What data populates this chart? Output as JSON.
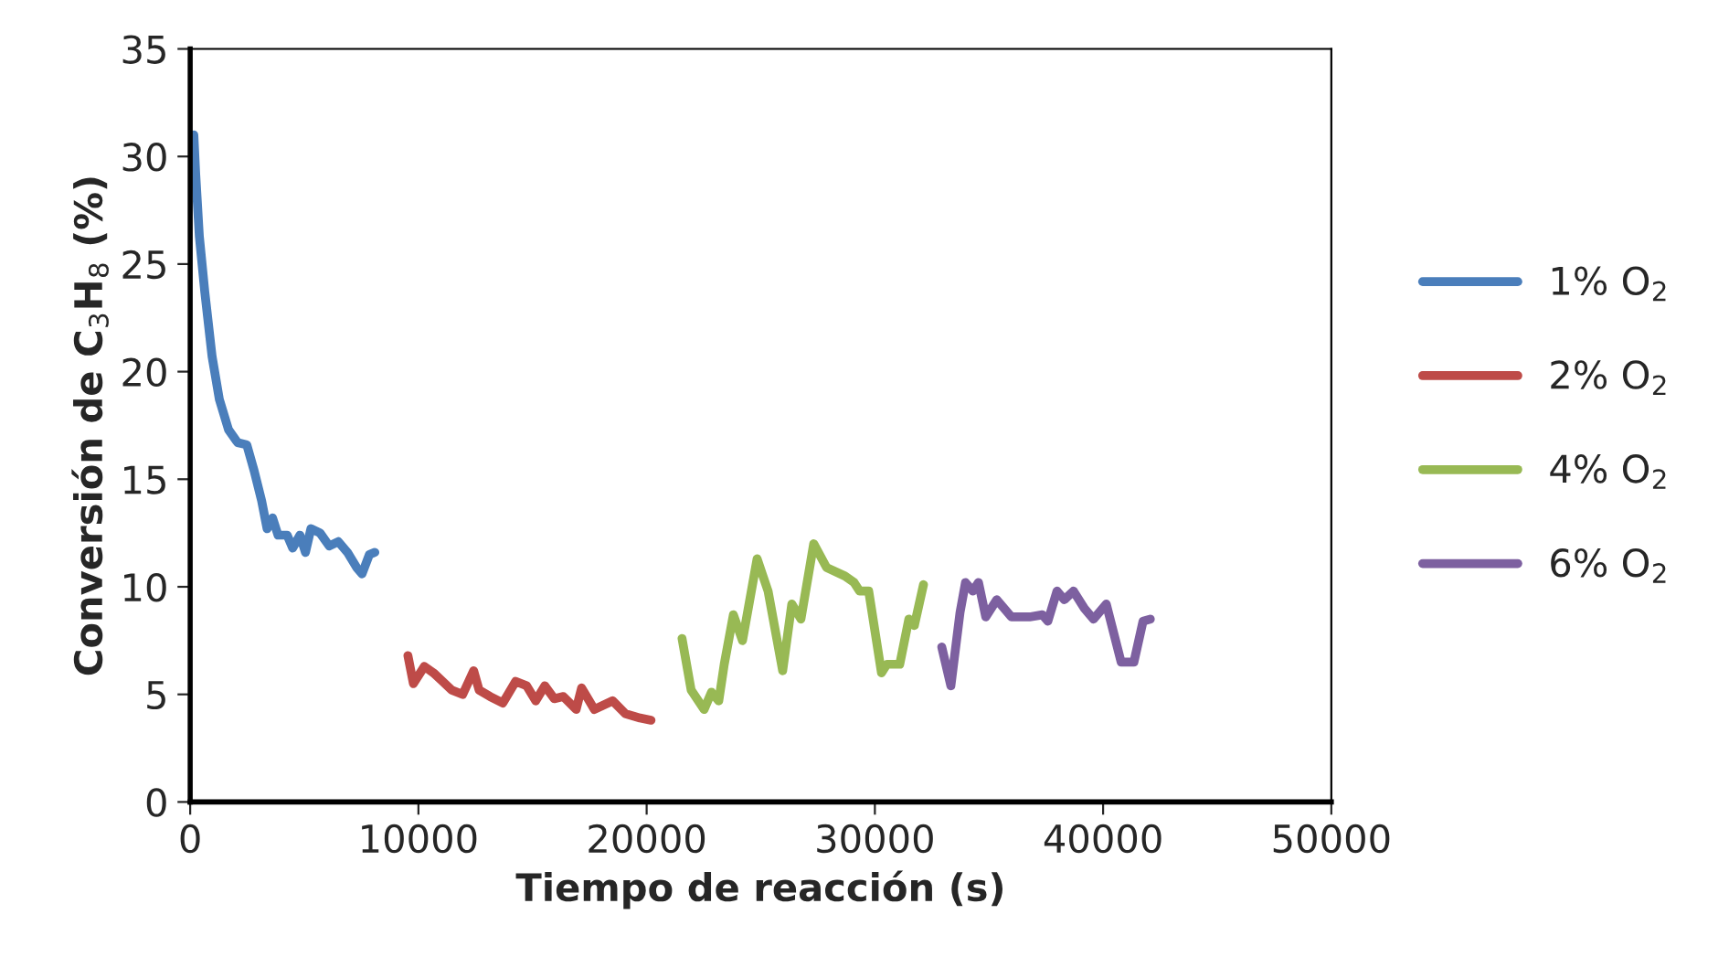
{
  "chart_data": {
    "type": "line",
    "xlabel": "Tiempo de reacción (s)",
    "ylabel": "Conversión de C$_{3}$H$_{8}$ (%)",
    "xlim": [
      0,
      50000
    ],
    "xticks": [
      0,
      10000,
      20000,
      30000,
      40000,
      50000
    ],
    "ylim": [
      0,
      35
    ],
    "yticks": [
      0,
      5,
      10,
      15,
      20,
      25,
      30,
      35
    ],
    "grid": false,
    "legend": "right",
    "marker": "none",
    "line_style": "solid",
    "series": [
      {
        "name": "1% O$_{2}$",
        "color": "#4a7ebb",
        "x": [
          160,
          240,
          400,
          640,
          960,
          1280,
          1680,
          2080,
          2480,
          2800,
          3130,
          3370,
          3610,
          3850,
          4250,
          4490,
          4810,
          5050,
          5290,
          5690,
          6090,
          6490,
          6890,
          7290,
          7530,
          7850,
          8090
        ],
        "values": [
          31,
          29.2,
          26.3,
          23.7,
          20.7,
          18.7,
          17.3,
          16.7,
          16.6,
          15.4,
          14,
          12.7,
          13.2,
          12.4,
          12.4,
          11.8,
          12.4,
          11.6,
          12.7,
          12.5,
          11.9,
          12.1,
          11.6,
          10.9,
          10.6,
          11.5,
          11.6
        ]
      },
      {
        "name": "2% O$_{2}$",
        "color": "#be4b48",
        "x": [
          9540,
          9780,
          10260,
          10660,
          11060,
          11460,
          11940,
          12420,
          12660,
          13140,
          13700,
          14260,
          14740,
          15140,
          15540,
          15950,
          16350,
          16910,
          17150,
          17710,
          18510,
          19070,
          19710,
          20190
        ],
        "values": [
          6.8,
          5.5,
          6.3,
          6.0,
          5.6,
          5.2,
          5.0,
          6.1,
          5.2,
          4.9,
          4.6,
          5.6,
          5.4,
          4.7,
          5.4,
          4.8,
          4.9,
          4.3,
          5.3,
          4.3,
          4.7,
          4.1,
          3.9,
          3.8
        ]
      },
      {
        "name": "4% O$_{2}$",
        "color": "#98b954",
        "x": [
          21550,
          21950,
          22520,
          22840,
          23160,
          23400,
          23800,
          24200,
          24840,
          25320,
          25960,
          26360,
          26760,
          27320,
          27880,
          28690,
          29090,
          29330,
          29730,
          30290,
          30530,
          31090,
          31490,
          31730,
          32130
        ],
        "values": [
          7.6,
          5.2,
          4.3,
          5.1,
          4.7,
          6.4,
          8.7,
          7.5,
          11.3,
          9.8,
          6.1,
          9.2,
          8.5,
          12.0,
          10.9,
          10.5,
          10.2,
          9.8,
          9.8,
          6.0,
          6.4,
          6.4,
          8.5,
          8.2,
          10.1
        ]
      },
      {
        "name": "6% O$_{2}$",
        "color": "#7d60a0",
        "x": [
          32930,
          33330,
          33730,
          33970,
          34290,
          34540,
          34860,
          35340,
          35980,
          36780,
          37340,
          37580,
          37980,
          38300,
          38700,
          39180,
          39580,
          40140,
          40790,
          41350,
          41750,
          42070
        ],
        "values": [
          7.2,
          5.4,
          8.8,
          10.2,
          9.8,
          10.2,
          8.6,
          9.4,
          8.6,
          8.6,
          8.7,
          8.4,
          9.8,
          9.4,
          9.8,
          9.0,
          8.5,
          9.2,
          6.5,
          6.5,
          8.4,
          8.5
        ]
      }
    ]
  }
}
